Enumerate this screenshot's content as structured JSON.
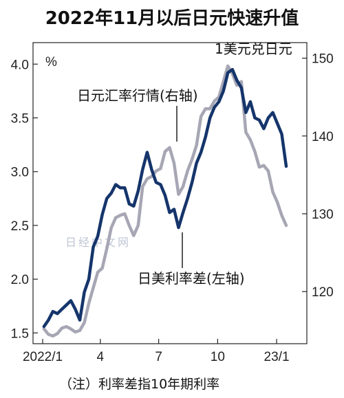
{
  "title": "2022年11月以后日元快速升值",
  "footnote": "（注）利率差指10年期利率",
  "watermark": "日经中文网",
  "chart_data": {
    "type": "line",
    "x_ticks": [
      "2022/1",
      "4",
      "7",
      "10",
      "23/1"
    ],
    "x_range": [
      "2022-01-01",
      "2023-01-31"
    ],
    "left_axis": {
      "unit": "%",
      "ticks": [
        "1.5",
        "2.0",
        "2.5",
        "3.0",
        "3.5",
        "4.0"
      ],
      "range": [
        1.4,
        4.2
      ]
    },
    "right_axis": {
      "ticks": [
        "120",
        "130",
        "140",
        "150"
      ],
      "range": [
        113.3,
        152
      ]
    },
    "annotations": {
      "usd_jpy": "1美元兑日元",
      "fx_series": "日元汇率行情(右轴)",
      "spread_series": "日美利率差(左轴)"
    },
    "series": [
      {
        "name": "日美利率差(左轴)",
        "axis": "left",
        "color": "#15356b",
        "x": [
          "2022-01-03",
          "2022-01-10",
          "2022-01-17",
          "2022-01-24",
          "2022-01-31",
          "2022-02-07",
          "2022-02-14",
          "2022-02-21",
          "2022-02-28",
          "2022-03-07",
          "2022-03-14",
          "2022-03-21",
          "2022-03-28",
          "2022-04-04",
          "2022-04-11",
          "2022-04-18",
          "2022-04-25",
          "2022-05-02",
          "2022-05-09",
          "2022-05-16",
          "2022-05-23",
          "2022-05-30",
          "2022-06-06",
          "2022-06-13",
          "2022-06-20",
          "2022-06-27",
          "2022-07-04",
          "2022-07-11",
          "2022-07-18",
          "2022-07-25",
          "2022-08-01",
          "2022-08-08",
          "2022-08-15",
          "2022-08-22",
          "2022-08-29",
          "2022-09-05",
          "2022-09-12",
          "2022-09-19",
          "2022-09-26",
          "2022-10-03",
          "2022-10-10",
          "2022-10-17",
          "2022-10-24",
          "2022-10-31",
          "2022-11-07",
          "2022-11-14",
          "2022-11-21",
          "2022-11-28",
          "2022-12-05",
          "2022-12-12",
          "2022-12-19",
          "2022-12-26",
          "2023-01-02",
          "2023-01-09",
          "2023-01-16"
        ],
        "values": [
          1.56,
          1.62,
          1.7,
          1.68,
          1.72,
          1.76,
          1.8,
          1.72,
          1.62,
          1.88,
          2.0,
          2.3,
          2.4,
          2.6,
          2.75,
          2.8,
          2.88,
          2.85,
          2.85,
          2.7,
          2.68,
          2.82,
          3.02,
          3.18,
          3.02,
          2.9,
          2.88,
          2.78,
          2.62,
          2.65,
          2.48,
          2.62,
          2.75,
          2.9,
          3.08,
          3.18,
          3.32,
          3.5,
          3.6,
          3.65,
          3.75,
          3.92,
          3.95,
          3.85,
          3.78,
          3.55,
          3.65,
          3.5,
          3.48,
          3.4,
          3.5,
          3.55,
          3.45,
          3.35,
          3.05
        ]
      },
      {
        "name": "日元汇率行情(右轴)",
        "axis": "right",
        "color": "#a6a6b4",
        "x": [
          "2022-01-03",
          "2022-01-10",
          "2022-01-17",
          "2022-01-24",
          "2022-01-31",
          "2022-02-07",
          "2022-02-14",
          "2022-02-21",
          "2022-02-28",
          "2022-03-07",
          "2022-03-14",
          "2022-03-21",
          "2022-03-28",
          "2022-04-04",
          "2022-04-11",
          "2022-04-18",
          "2022-04-25",
          "2022-05-02",
          "2022-05-09",
          "2022-05-16",
          "2022-05-23",
          "2022-05-30",
          "2022-06-06",
          "2022-06-13",
          "2022-06-20",
          "2022-06-27",
          "2022-07-04",
          "2022-07-11",
          "2022-07-18",
          "2022-07-25",
          "2022-08-01",
          "2022-08-08",
          "2022-08-15",
          "2022-08-22",
          "2022-08-29",
          "2022-09-05",
          "2022-09-12",
          "2022-09-19",
          "2022-09-26",
          "2022-10-03",
          "2022-10-10",
          "2022-10-17",
          "2022-10-24",
          "2022-10-31",
          "2022-11-07",
          "2022-11-14",
          "2022-11-21",
          "2022-11-28",
          "2022-12-05",
          "2022-12-12",
          "2022-12-19",
          "2022-12-26",
          "2023-01-02",
          "2023-01-09",
          "2023-01-16"
        ],
        "values": [
          115.2,
          114.5,
          114.3,
          114.6,
          115.3,
          115.5,
          115.2,
          114.8,
          115.0,
          116.0,
          118.5,
          120.5,
          122.5,
          123.0,
          125.5,
          128.2,
          129.5,
          129.8,
          130.0,
          128.5,
          127.2,
          128.5,
          133.5,
          134.5,
          134.8,
          135.5,
          135.8,
          138.0,
          138.5,
          136.5,
          132.5,
          133.5,
          135.5,
          137.0,
          138.8,
          142.5,
          143.5,
          143.5,
          144.5,
          145.0,
          147.0,
          149.0,
          148.0,
          146.5,
          147.0,
          140.5,
          139.5,
          138.0,
          136.0,
          136.2,
          135.5,
          132.8,
          131.5,
          129.8,
          128.5
        ]
      }
    ]
  }
}
